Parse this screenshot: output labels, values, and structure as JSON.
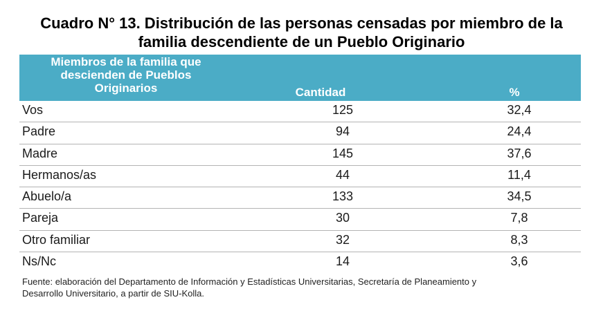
{
  "title": {
    "line1": "Cuadro N° 13. Distribución de las personas censadas por miembro de la",
    "line2": "familia descendiente de un Pueblo Originario"
  },
  "table": {
    "headers": {
      "members_line1": "Miembros de la familia que",
      "members_line2": "descienden de Pueblos",
      "members_line3": "Originarios",
      "cantidad": "Cantidad",
      "percent": "%"
    },
    "rows": [
      {
        "label": "Vos",
        "cantidad": "125",
        "percent": "32,4"
      },
      {
        "label": "Padre",
        "cantidad": "94",
        "percent": "24,4"
      },
      {
        "label": "Madre",
        "cantidad": "145",
        "percent": "37,6"
      },
      {
        "label": "Hermanos/as",
        "cantidad": "44",
        "percent": "11,4"
      },
      {
        "label": "Abuelo/a",
        "cantidad": "133",
        "percent": "34,5"
      },
      {
        "label": "Pareja",
        "cantidad": "30",
        "percent": "7,8"
      },
      {
        "label": "Otro familiar",
        "cantidad": "32",
        "percent": "8,3"
      },
      {
        "label": "Ns/Nc",
        "cantidad": "14",
        "percent": "3,6"
      }
    ]
  },
  "source": {
    "line1": "Fuente: elaboración del Departamento de Información y Estadísticas Universitarias, Secretaría de Planeamiento y",
    "line2": "Desarrollo Universitario,  a partir de  SIU-Kolla."
  },
  "colors": {
    "header_bg": "#4bacc6",
    "header_text": "#ffffff",
    "row_divider": "#b3b3b3"
  }
}
